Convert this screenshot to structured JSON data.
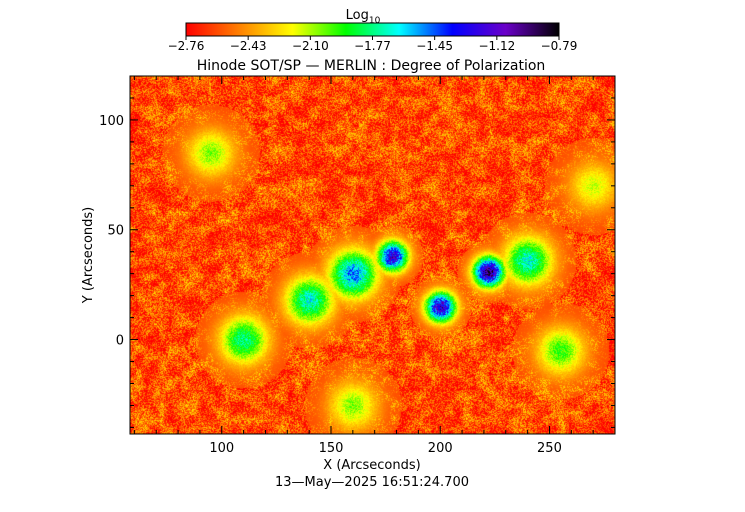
{
  "chart_data": {
    "type": "heatmap",
    "title": "Hinode SOT/SP — MERLIN : Degree of Polarization",
    "xlabel": "X (Arcseconds)",
    "ylabel": "Y (Arcseconds)",
    "xlim": [
      58,
      280
    ],
    "ylim": [
      -43,
      120
    ],
    "xticks": [
      100,
      150,
      200,
      250
    ],
    "yticks": [
      100,
      50,
      0
    ],
    "timestamp": "13—May—2025 16:51:24.700",
    "colorbar": {
      "title": "Log",
      "title_sub": "10",
      "range": [
        -2.76,
        -0.79
      ],
      "tick_labels": [
        "−2.76",
        "−2.43",
        "−2.10",
        "−1.77",
        "−1.45",
        "−1.12",
        "−0.79"
      ],
      "colormap": [
        "#ff0000",
        "#ff8000",
        "#ffff00",
        "#00ff00",
        "#00ffff",
        "#0000ff",
        "#6a00c8",
        "#000000"
      ]
    },
    "background_level": -2.6,
    "features": [
      {
        "x": 178,
        "y": 38,
        "value": -1.05
      },
      {
        "x": 222,
        "y": 31,
        "value": -0.82
      },
      {
        "x": 200,
        "y": 15,
        "value": -1.0
      },
      {
        "x": 160,
        "y": 30,
        "value": -1.4
      },
      {
        "x": 140,
        "y": 18,
        "value": -1.6
      },
      {
        "x": 110,
        "y": 0,
        "value": -1.7
      },
      {
        "x": 255,
        "y": -5,
        "value": -1.9
      },
      {
        "x": 240,
        "y": 36,
        "value": -1.6
      },
      {
        "x": 95,
        "y": 85,
        "value": -2.0
      },
      {
        "x": 160,
        "y": -30,
        "value": -2.0
      },
      {
        "x": 270,
        "y": 70,
        "value": -2.1
      }
    ]
  }
}
